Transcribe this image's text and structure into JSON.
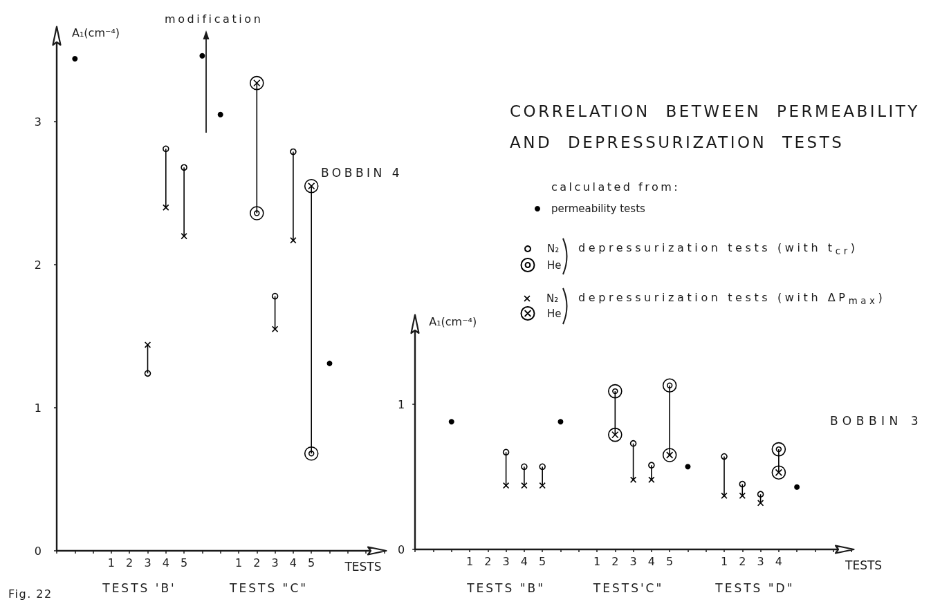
{
  "chart_data": [
    {
      "type": "scatter",
      "ylabel": "A₁(cm⁻⁴)",
      "xlabel": "TESTS",
      "categories": [
        null,
        null,
        null,
        "1",
        "2",
        "3",
        "4",
        "5",
        null,
        null,
        "1",
        "2",
        "3",
        "4",
        "5",
        null,
        null,
        null,
        null
      ],
      "ylim": [
        0,
        3.65
      ],
      "yticks": [
        0,
        1,
        2,
        3
      ],
      "annotations": [
        "modification",
        "BOBBIN 4",
        "TESTS 'B'",
        "TESTS \"C\"",
        "Fig. 22"
      ],
      "series": [
        {
          "type": "bar",
          "color": "#000000",
          "base": [
            null,
            null,
            null,
            null,
            null,
            1.24,
            2.4,
            2.2,
            null,
            null,
            null,
            2.36,
            1.55,
            2.17,
            0.68,
            null,
            null,
            null,
            null
          ],
          "values": [
            null,
            null,
            null,
            null,
            null,
            0.2,
            0.41,
            0.48,
            null,
            null,
            null,
            0.91,
            0.23,
            0.62,
            1.87,
            null,
            null,
            null,
            null
          ]
        },
        {
          "marker": "circle",
          "color": "#000000",
          "values": [
            null,
            3.44,
            null,
            null,
            null,
            null,
            null,
            null,
            3.46,
            3.05,
            null,
            null,
            null,
            null,
            null,
            1.31,
            null,
            null,
            null
          ]
        },
        {
          "marker": "circle",
          "color": "#000000",
          "values": [
            null,
            null,
            null,
            null,
            null,
            1.24,
            2.81,
            2.68,
            null,
            null,
            null,
            null,
            1.78,
            2.79,
            null,
            null,
            null,
            null,
            null
          ]
        },
        {
          "marker": "circle",
          "color": "#000000",
          "values": [
            null,
            null,
            null,
            null,
            null,
            null,
            null,
            null,
            null,
            null,
            null,
            2.36,
            null,
            null,
            0.68,
            null,
            null,
            null,
            null
          ]
        },
        {
          "marker": "cross",
          "color": "#000000",
          "values": [
            null,
            null,
            null,
            null,
            null,
            1.44,
            2.4,
            2.2,
            null,
            null,
            null,
            null,
            1.55,
            2.17,
            null,
            null,
            null,
            null,
            null
          ]
        },
        {
          "marker": "cross",
          "color": "#000000",
          "values": [
            null,
            null,
            null,
            null,
            null,
            null,
            null,
            null,
            null,
            null,
            null,
            3.27,
            null,
            null,
            2.55,
            null,
            null,
            null,
            null
          ]
        }
      ]
    },
    {
      "type": "scatter",
      "title": "CORRELATION BETWEEN PERMEABILITY AND DEPRESSURIZATION TESTS",
      "ylabel": "A₁(cm⁻⁴)",
      "xlabel": "TESTS",
      "categories": [
        null,
        null,
        null,
        "1",
        "2",
        "3",
        "4",
        "5",
        null,
        null,
        "1",
        "2",
        "3",
        "4",
        "5",
        null,
        null,
        "1",
        "2",
        "3",
        "4",
        null,
        null,
        null,
        null
      ],
      "ylim": [
        0,
        1.6
      ],
      "yticks": [
        0,
        1
      ],
      "legend": "top left",
      "legend_title": "calculated from:",
      "annotations": [
        "BOBBIN 3",
        "TESTS \"B\"",
        "TESTS'C\"",
        "TESTS \"D\"",
        "depressurization tests (with t$_{cr}$)",
        "depressurization tests (with ΔP$_{max}$)"
      ],
      "series": [
        {
          "type": "bar",
          "color": "#000000",
          "base": [
            null,
            null,
            null,
            null,
            null,
            0.44,
            0.44,
            0.44,
            null,
            null,
            null,
            0.79,
            0.48,
            0.48,
            0.65,
            null,
            null,
            0.37,
            0.37,
            0.32,
            0.53,
            null,
            null,
            null,
            null
          ],
          "values": [
            null,
            null,
            null,
            null,
            null,
            0.23,
            0.13,
            0.13,
            null,
            null,
            null,
            0.3,
            0.25,
            0.1,
            0.48,
            null,
            null,
            0.27,
            0.08,
            0.06,
            0.16,
            null,
            null,
            null,
            null
          ]
        },
        {
          "name": "permeability tests",
          "marker": "circle",
          "color": "#000000",
          "values": [
            null,
            null,
            0.88,
            null,
            null,
            null,
            null,
            null,
            0.88,
            null,
            null,
            null,
            null,
            null,
            null,
            0.57,
            null,
            null,
            null,
            null,
            null,
            0.43,
            null,
            null,
            null
          ]
        },
        {
          "name": "N₂",
          "marker": "circle",
          "color": "#000000",
          "values": [
            null,
            null,
            null,
            null,
            null,
            0.67,
            0.57,
            0.57,
            null,
            null,
            null,
            null,
            0.73,
            0.58,
            null,
            null,
            null,
            0.64,
            0.45,
            0.38,
            null,
            null,
            null,
            null,
            null
          ]
        },
        {
          "name": "He",
          "marker": "circle",
          "color": "#000000",
          "values": [
            null,
            null,
            null,
            null,
            null,
            null,
            null,
            null,
            null,
            null,
            null,
            1.09,
            null,
            null,
            1.13,
            null,
            null,
            null,
            null,
            null,
            0.69,
            null,
            null,
            null,
            null
          ]
        },
        {
          "name": "N₂",
          "marker": "cross",
          "color": "#000000",
          "values": [
            null,
            null,
            null,
            null,
            null,
            0.44,
            0.44,
            0.44,
            null,
            null,
            null,
            null,
            0.48,
            0.48,
            null,
            null,
            null,
            0.37,
            0.37,
            0.32,
            null,
            null,
            null,
            null,
            null
          ]
        },
        {
          "name": "He",
          "marker": "cross",
          "color": "#000000",
          "values": [
            null,
            null,
            null,
            null,
            null,
            null,
            null,
            null,
            null,
            null,
            null,
            0.79,
            null,
            null,
            0.65,
            null,
            null,
            null,
            null,
            null,
            0.53,
            null,
            null,
            null,
            null
          ]
        }
      ]
    }
  ]
}
